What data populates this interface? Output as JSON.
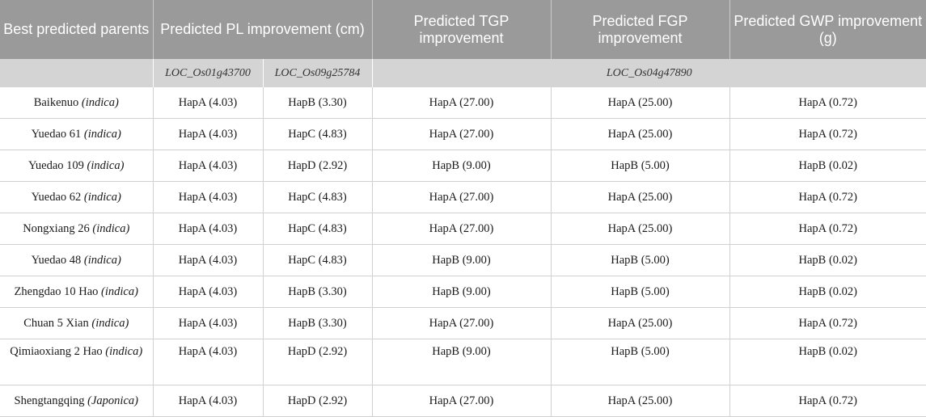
{
  "headers": [
    "Best predicted parents",
    "Predicted PL improvement (cm)",
    "Predicted TGP improvement",
    "Predicted FGP improvement",
    "Predicted GWP improvement (g)"
  ],
  "genes": [
    "LOC_Os01g43700",
    "LOC_Os09g25784",
    "LOC_Os04g47890"
  ],
  "rows": [
    {
      "name": "Baikenuo",
      "sub": "(indica)",
      "pl1": "HapA (4.03)",
      "pl2": "HapB (3.30)",
      "tgp": "HapA (27.00)",
      "fgp": "HapA (25.00)",
      "gwp": "HapA (0.72)"
    },
    {
      "name": "Yuedao 61",
      "sub": "(indica)",
      "pl1": "HapA (4.03)",
      "pl2": "HapC (4.83)",
      "tgp": "HapA (27.00)",
      "fgp": "HapA (25.00)",
      "gwp": "HapA (0.72)"
    },
    {
      "name": "Yuedao 109",
      "sub": "(indica)",
      "pl1": "HapA (4.03)",
      "pl2": "HapD (2.92)",
      "tgp": "HapB (9.00)",
      "fgp": "HapB (5.00)",
      "gwp": "HapB (0.02)"
    },
    {
      "name": "Yuedao 62",
      "sub": "(indica)",
      "pl1": "HapA (4.03)",
      "pl2": "HapC (4.83)",
      "tgp": "HapA (27.00)",
      "fgp": "HapA (25.00)",
      "gwp": "HapA (0.72)"
    },
    {
      "name": "Nongxiang 26",
      "sub": "(indica)",
      "pl1": "HapA (4.03)",
      "pl2": "HapC (4.83)",
      "tgp": "HapA (27.00)",
      "fgp": "HapA (25.00)",
      "gwp": "HapA (0.72)"
    },
    {
      "name": "Yuedao 48",
      "sub": "(indica)",
      "pl1": "HapA (4.03)",
      "pl2": "HapC (4.83)",
      "tgp": "HapB (9.00)",
      "fgp": "HapB (5.00)",
      "gwp": "HapB (0.02)"
    },
    {
      "name": "Zhengdao 10 Hao",
      "sub": "(indica)",
      "pl1": "HapA (4.03)",
      "pl2": "HapB (3.30)",
      "tgp": "HapB (9.00)",
      "fgp": "HapB (5.00)",
      "gwp": "HapB (0.02)"
    },
    {
      "name": "Chuan 5 Xian",
      "sub": "(indica)",
      "pl1": "HapA (4.03)",
      "pl2": "HapB (3.30)",
      "tgp": "HapA (27.00)",
      "fgp": "HapA (25.00)",
      "gwp": "HapA (0.72)"
    },
    {
      "name": "Qimiaoxiang 2 Hao",
      "sub": "(indica)",
      "pl1": "HapA (4.03)",
      "pl2": "HapD (2.92)",
      "tgp": "HapB (9.00)",
      "fgp": "HapB (5.00)",
      "gwp": "HapB (0.02)"
    },
    {
      "name": "Shengtangqing",
      "sub": "(Japonica)",
      "pl1": "HapA (4.03)",
      "pl2": "HapD (2.92)",
      "tgp": "HapA (27.00)",
      "fgp": "HapA (25.00)",
      "gwp": "HapA (0.72)"
    }
  ]
}
